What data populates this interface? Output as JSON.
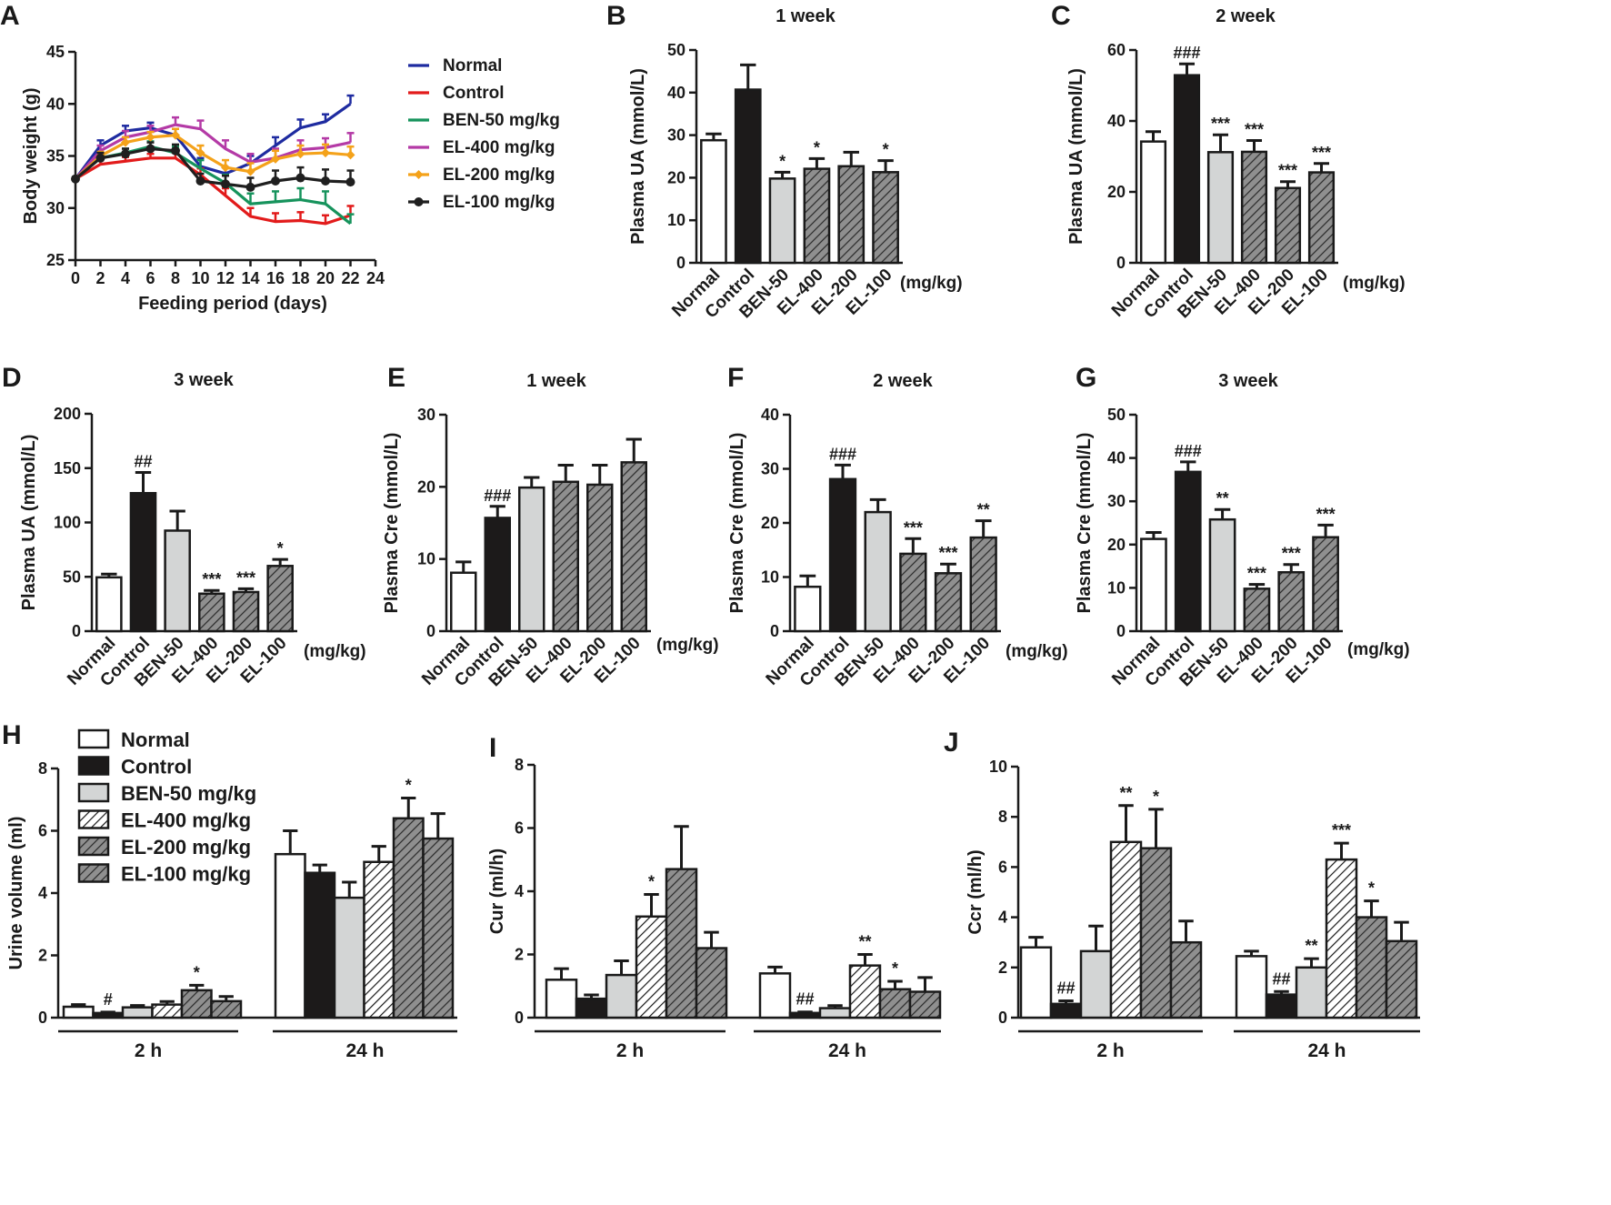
{
  "colors": {
    "normal_fill": "#ffffff",
    "control_fill": "#1c1a1a",
    "ben_fill": "#d3d5d5",
    "hatch_fill": "#8f8f8f",
    "line_colors": [
      "#1e2ba0",
      "#e21b1b",
      "#16935c",
      "#b43aa6",
      "#f4a21a",
      "#1f1f1f"
    ]
  },
  "chart_data": [
    {
      "id": "A",
      "type": "line",
      "letter": "A",
      "title": "",
      "xlabel": "Feeding period (days)",
      "ylabel": "Body weight (g)",
      "xlim": [
        0,
        24
      ],
      "ylim": [
        25,
        45
      ],
      "xticks": [
        0,
        2,
        4,
        6,
        8,
        10,
        12,
        14,
        16,
        18,
        20,
        22,
        24
      ],
      "xtick_labels": [
        "0",
        "2",
        "4",
        "6",
        "8",
        "10",
        "12",
        "14",
        "16",
        "18",
        "20",
        "22",
        "24"
      ],
      "yticks": [
        25,
        30,
        35,
        40,
        45
      ],
      "ytick_labels": [
        "25",
        "30",
        "35",
        "40",
        "45"
      ],
      "x": [
        0,
        2,
        4,
        6,
        8,
        10,
        12,
        14,
        16,
        18,
        20,
        22
      ],
      "series": [
        {
          "name": "Normal",
          "color": "#1e2ba0",
          "marker": "",
          "values": [
            32.8,
            36.0,
            37.4,
            37.7,
            37.0,
            34.0,
            33.3,
            34.3,
            36.0,
            37.7,
            38.3,
            40.0
          ],
          "errors": [
            0.2,
            0.5,
            0.5,
            0.5,
            0.6,
            0.8,
            0.6,
            0.7,
            0.8,
            0.8,
            0.7,
            0.8
          ]
        },
        {
          "name": "Control",
          "color": "#e21b1b",
          "marker": "",
          "values": [
            32.8,
            34.2,
            34.5,
            34.8,
            34.8,
            33.2,
            31.2,
            29.2,
            28.7,
            28.8,
            28.5,
            29.3
          ],
          "errors": [
            0.2,
            0.4,
            0.4,
            0.4,
            0.5,
            0.6,
            0.7,
            0.8,
            0.8,
            0.8,
            0.8,
            0.9
          ]
        },
        {
          "name": "BEN-50 mg/kg",
          "color": "#16935c",
          "marker": "",
          "values": [
            32.8,
            34.8,
            35.3,
            35.9,
            35.3,
            33.8,
            32.4,
            30.4,
            30.6,
            30.8,
            30.4,
            28.5
          ],
          "errors": [
            0.2,
            0.4,
            0.4,
            0.5,
            0.6,
            0.8,
            0.8,
            1.0,
            1.0,
            1.1,
            1.2,
            0.9
          ]
        },
        {
          "name": "EL-400 mg/kg",
          "color": "#b43aa6",
          "marker": "",
          "values": [
            32.8,
            35.5,
            36.8,
            37.3,
            38.0,
            37.6,
            35.7,
            34.4,
            34.8,
            35.6,
            35.8,
            36.3
          ],
          "errors": [
            0.2,
            0.5,
            0.6,
            0.6,
            0.7,
            0.8,
            0.8,
            0.8,
            0.9,
            0.9,
            0.9,
            0.9
          ]
        },
        {
          "name": "EL-200 mg/kg",
          "color": "#f4a21a",
          "marker": "diamond",
          "values": [
            32.8,
            35.0,
            36.3,
            36.8,
            37.0,
            35.3,
            33.9,
            33.5,
            34.7,
            35.2,
            35.3,
            35.1
          ],
          "errors": [
            0.2,
            0.4,
            0.5,
            0.5,
            0.6,
            0.7,
            0.7,
            0.8,
            0.8,
            0.8,
            0.8,
            0.8
          ]
        },
        {
          "name": "EL-100 mg/kg",
          "color": "#1f1f1f",
          "marker": "circle",
          "values": [
            32.8,
            34.8,
            35.2,
            35.7,
            35.5,
            32.6,
            32.3,
            32.0,
            32.6,
            32.9,
            32.6,
            32.5
          ],
          "errors": [
            0.2,
            0.5,
            0.5,
            0.6,
            0.6,
            0.7,
            0.8,
            0.9,
            1.0,
            1.0,
            1.1,
            1.1
          ]
        }
      ]
    },
    {
      "id": "B",
      "type": "bar",
      "letter": "B",
      "title": "1 week",
      "ylabel": "Plasma UA (mmol/L)",
      "unit": "(mg/kg)",
      "ylim": [
        0,
        50
      ],
      "yticks": [
        0,
        10,
        20,
        30,
        40,
        50
      ],
      "ytick_labels": [
        "0",
        "10",
        "20",
        "30",
        "40",
        "50"
      ],
      "categories": [
        "Normal",
        "Control",
        "BEN-50",
        "EL-400",
        "EL-200",
        "EL-100"
      ],
      "values": [
        28.8,
        40.7,
        19.8,
        22.1,
        22.7,
        21.3
      ],
      "errors": [
        1.5,
        5.8,
        1.5,
        2.4,
        3.3,
        2.7
      ],
      "annotations": [
        "",
        "",
        "*",
        "*",
        "",
        "*"
      ]
    },
    {
      "id": "C",
      "type": "bar",
      "letter": "C",
      "title": "2 week",
      "ylabel": "Plasma UA (mmol/L)",
      "unit": "(mg/kg)",
      "ylim": [
        0,
        60
      ],
      "yticks": [
        0,
        20,
        40,
        60
      ],
      "ytick_labels": [
        "0",
        "20",
        "40",
        "60"
      ],
      "categories": [
        "Normal",
        "Control",
        "BEN-50",
        "EL-400",
        "EL-200",
        "EL-100"
      ],
      "values": [
        34.2,
        52.9,
        31.2,
        31.3,
        21.1,
        25.5
      ],
      "errors": [
        2.8,
        3.2,
        4.9,
        3.2,
        1.8,
        2.5
      ],
      "annotations": [
        "",
        "###",
        "***",
        "***",
        "***",
        "***"
      ]
    },
    {
      "id": "D",
      "type": "bar",
      "letter": "D",
      "title": "3 week",
      "ylabel": "Plasma UA (mmol/L)",
      "unit": "(mg/kg)",
      "ylim": [
        0,
        200
      ],
      "yticks": [
        0,
        50,
        100,
        150,
        200
      ],
      "ytick_labels": [
        "0",
        "50",
        "100",
        "150",
        "200"
      ],
      "categories": [
        "Normal",
        "Control",
        "BEN-50",
        "EL-400",
        "EL-200",
        "EL-100"
      ],
      "values": [
        49.5,
        127.0,
        92.5,
        34.5,
        36.0,
        60.0
      ],
      "errors": [
        3.0,
        19.0,
        18.0,
        3.0,
        3.0,
        6.0
      ],
      "annotations": [
        "",
        "##",
        "",
        "***",
        "***",
        "*"
      ]
    },
    {
      "id": "E",
      "type": "bar",
      "letter": "E",
      "title": "1 week",
      "ylabel": "Plasma Cre (mmol/L)",
      "unit": "(mg/kg)",
      "ylim": [
        0,
        30
      ],
      "yticks": [
        0,
        10,
        20,
        30
      ],
      "ytick_labels": [
        "0",
        "10",
        "20",
        "30"
      ],
      "categories": [
        "Normal",
        "Control",
        "BEN-50",
        "EL-400",
        "EL-200",
        "EL-100"
      ],
      "values": [
        8.1,
        15.7,
        19.9,
        20.7,
        20.3,
        23.4
      ],
      "errors": [
        1.5,
        1.6,
        1.4,
        2.3,
        2.7,
        3.2
      ],
      "annotations": [
        "",
        "###",
        "",
        "",
        "",
        ""
      ]
    },
    {
      "id": "F",
      "type": "bar",
      "letter": "F",
      "title": "2 week",
      "ylabel": "Plasma Cre (mmol/L)",
      "unit": "(mg/kg)",
      "ylim": [
        0,
        40
      ],
      "yticks": [
        0,
        10,
        20,
        30,
        40
      ],
      "ytick_labels": [
        "0",
        "10",
        "20",
        "30",
        "40"
      ],
      "categories": [
        "Normal",
        "Control",
        "BEN-50",
        "EL-400",
        "EL-200",
        "EL-100"
      ],
      "values": [
        8.2,
        28.1,
        22.0,
        14.3,
        10.7,
        17.3
      ],
      "errors": [
        2.0,
        2.6,
        2.3,
        2.8,
        1.7,
        3.1
      ],
      "annotations": [
        "",
        "###",
        "",
        "***",
        "***",
        "**"
      ]
    },
    {
      "id": "G",
      "type": "bar",
      "letter": "G",
      "title": "3 week",
      "ylabel": "Plasma Cre (mmol/L)",
      "unit": "(mg/kg)",
      "ylim": [
        0,
        50
      ],
      "yticks": [
        0,
        10,
        20,
        30,
        40,
        50
      ],
      "ytick_labels": [
        "0",
        "10",
        "20",
        "30",
        "40",
        "50"
      ],
      "categories": [
        "Normal",
        "Control",
        "BEN-50",
        "EL-400",
        "EL-200",
        "EL-100"
      ],
      "values": [
        21.3,
        36.8,
        25.8,
        9.8,
        13.6,
        21.7
      ],
      "errors": [
        1.5,
        2.3,
        2.3,
        1.0,
        1.8,
        2.8
      ],
      "annotations": [
        "",
        "###",
        "**",
        "***",
        "***",
        "***"
      ]
    },
    {
      "id": "H",
      "type": "bar",
      "letter": "H",
      "title": "",
      "ylabel": "Urine volume (ml)",
      "ylim": [
        0,
        8
      ],
      "yticks": [
        0,
        2,
        4,
        6,
        8
      ],
      "ytick_labels": [
        "0",
        "2",
        "4",
        "6",
        "8"
      ],
      "group_labels": [
        "2 h",
        "24 h"
      ],
      "series": [
        {
          "name": "Normal",
          "values": [
            0.35,
            5.25
          ],
          "errors": [
            0.07,
            0.75
          ],
          "annotations": [
            "",
            ""
          ]
        },
        {
          "name": "Control",
          "values": [
            0.15,
            4.65
          ],
          "errors": [
            0.03,
            0.25
          ],
          "annotations": [
            "#",
            ""
          ]
        },
        {
          "name": "BEN-50 mg/kg",
          "values": [
            0.33,
            3.85
          ],
          "errors": [
            0.06,
            0.5
          ],
          "annotations": [
            "",
            ""
          ]
        },
        {
          "name": "EL-400 mg/kg",
          "values": [
            0.42,
            5.0
          ],
          "errors": [
            0.1,
            0.5
          ],
          "annotations": [
            "",
            ""
          ]
        },
        {
          "name": "EL-200 mg/kg",
          "values": [
            0.88,
            6.4
          ],
          "errors": [
            0.16,
            0.65
          ],
          "annotations": [
            "*",
            "*"
          ]
        },
        {
          "name": "EL-100 mg/kg",
          "values": [
            0.53,
            5.75
          ],
          "errors": [
            0.15,
            0.8
          ],
          "annotations": [
            "",
            ""
          ]
        }
      ]
    },
    {
      "id": "I",
      "type": "bar",
      "letter": "I",
      "title": "",
      "ylabel": "Cur (ml/h)",
      "ylim": [
        0,
        8
      ],
      "yticks": [
        0,
        2,
        4,
        6,
        8
      ],
      "ytick_labels": [
        "0",
        "2",
        "4",
        "6",
        "8"
      ],
      "group_labels": [
        "2 h",
        "24 h"
      ],
      "series": [
        {
          "name": "Normal",
          "values": [
            1.2,
            1.4
          ],
          "errors": [
            0.35,
            0.2
          ],
          "annotations": [
            "",
            ""
          ]
        },
        {
          "name": "Control",
          "values": [
            0.6,
            0.15
          ],
          "errors": [
            0.12,
            0.03
          ],
          "annotations": [
            "",
            "##"
          ]
        },
        {
          "name": "BEN-50 mg/kg",
          "values": [
            1.35,
            0.3
          ],
          "errors": [
            0.45,
            0.08
          ],
          "annotations": [
            "",
            ""
          ]
        },
        {
          "name": "EL-400 mg/kg",
          "values": [
            3.2,
            1.65
          ],
          "errors": [
            0.7,
            0.35
          ],
          "annotations": [
            "*",
            "**"
          ]
        },
        {
          "name": "EL-200 mg/kg",
          "values": [
            4.7,
            0.9
          ],
          "errors": [
            1.35,
            0.25
          ],
          "annotations": [
            "",
            "*"
          ]
        },
        {
          "name": "EL-100 mg/kg",
          "values": [
            2.2,
            0.82
          ],
          "errors": [
            0.5,
            0.45
          ],
          "annotations": [
            "",
            ""
          ]
        }
      ]
    },
    {
      "id": "J",
      "type": "bar",
      "letter": "J",
      "title": "",
      "ylabel": "Ccr (ml/h)",
      "ylim": [
        0,
        10
      ],
      "yticks": [
        0,
        2,
        4,
        6,
        8,
        10
      ],
      "ytick_labels": [
        "0",
        "2",
        "4",
        "6",
        "8",
        "10"
      ],
      "group_labels": [
        "2 h",
        "24 h"
      ],
      "series": [
        {
          "name": "Normal",
          "values": [
            2.8,
            2.45
          ],
          "errors": [
            0.4,
            0.2
          ],
          "annotations": [
            "",
            ""
          ]
        },
        {
          "name": "Control",
          "values": [
            0.55,
            0.92
          ],
          "errors": [
            0.12,
            0.12
          ],
          "annotations": [
            "##",
            "##"
          ]
        },
        {
          "name": "BEN-50 mg/kg",
          "values": [
            2.65,
            2.0
          ],
          "errors": [
            1.0,
            0.35
          ],
          "annotations": [
            "",
            "**"
          ]
        },
        {
          "name": "EL-400 mg/kg",
          "values": [
            7.0,
            6.3
          ],
          "errors": [
            1.45,
            0.65
          ],
          "annotations": [
            "**",
            "***"
          ]
        },
        {
          "name": "EL-200 mg/kg",
          "values": [
            6.75,
            4.0
          ],
          "errors": [
            1.55,
            0.65
          ],
          "annotations": [
            "*",
            "*"
          ]
        },
        {
          "name": "EL-100 mg/kg",
          "values": [
            3.0,
            3.05
          ],
          "errors": [
            0.85,
            0.75
          ],
          "annotations": [
            "",
            ""
          ]
        }
      ]
    }
  ]
}
